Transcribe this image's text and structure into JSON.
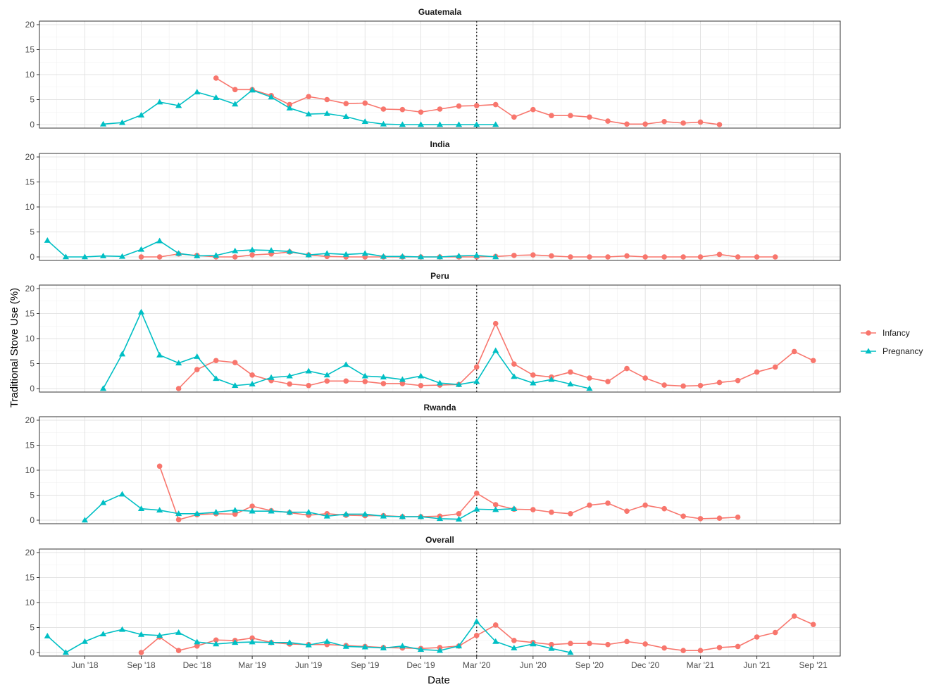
{
  "chart_data": {
    "type": "line",
    "xlabel": "Date",
    "ylabel": "Traditional Stove Use (%)",
    "ylim": [
      0,
      20
    ],
    "y_ticks": [
      0,
      5,
      10,
      15,
      20
    ],
    "x_ticks": [
      {
        "date": "2018-06",
        "label": "Jun '18"
      },
      {
        "date": "2018-09",
        "label": "Sep '18"
      },
      {
        "date": "2018-12",
        "label": "Dec '18"
      },
      {
        "date": "2019-03",
        "label": "Mar '19"
      },
      {
        "date": "2019-06",
        "label": "Jun '19"
      },
      {
        "date": "2019-09",
        "label": "Sep '19"
      },
      {
        "date": "2019-12",
        "label": "Dec '19"
      },
      {
        "date": "2020-03",
        "label": "Mar '20"
      },
      {
        "date": "2020-06",
        "label": "Jun '20"
      },
      {
        "date": "2020-09",
        "label": "Sep '20"
      },
      {
        "date": "2020-12",
        "label": "Dec '20"
      },
      {
        "date": "2021-03",
        "label": "Mar '21"
      },
      {
        "date": "2021-06",
        "label": "Jun '21"
      },
      {
        "date": "2021-09",
        "label": "Sep '21"
      }
    ],
    "x_range": [
      "2018-03-19",
      "2021-10-15"
    ],
    "reference_line": "2020-03",
    "grid": true,
    "legend_position": "right",
    "legend": [
      {
        "name": "Infancy",
        "color": "#F8766D",
        "marker": "circle"
      },
      {
        "name": "Pregnancy",
        "color": "#00BFC4",
        "marker": "triangle"
      }
    ],
    "panels": [
      {
        "title": "Guatemala",
        "series": [
          {
            "name": "Infancy",
            "start": "2019-01",
            "values": [
              9.3,
              7.0,
              7.0,
              5.8,
              4.0,
              5.6,
              5.0,
              4.2,
              4.3,
              3.1,
              3.0,
              2.5,
              3.1,
              3.7,
              3.8,
              4.0,
              1.5,
              3.0,
              1.8,
              1.8,
              1.5,
              0.7,
              0.1,
              0.1,
              0.6,
              0.3,
              0.5,
              0.0
            ]
          },
          {
            "name": "Pregnancy",
            "start": "2018-07",
            "values": [
              0.1,
              0.4,
              1.9,
              4.5,
              3.8,
              6.5,
              5.4,
              4.1,
              6.9,
              5.5,
              3.3,
              2.1,
              2.2,
              1.6,
              0.6,
              0.1,
              0.0,
              0.0,
              0.0,
              0.0,
              0.0,
              0.0
            ]
          }
        ]
      },
      {
        "title": "India",
        "series": [
          {
            "name": "Infancy",
            "start": "2018-09",
            "values": [
              0.0,
              0.0,
              0.6,
              0.3,
              0.0,
              0.0,
              0.4,
              0.6,
              1.0,
              0.4,
              0.1,
              0.0,
              0.0,
              0.0,
              0.0,
              0.0,
              0.0,
              0.0,
              0.0,
              0.1,
              0.3,
              0.4,
              0.2,
              0.0,
              0.0,
              0.0,
              0.2,
              0.0,
              0.0,
              0.0,
              0.0,
              0.5,
              0.0,
              0.0,
              0.0
            ]
          },
          {
            "name": "Pregnancy",
            "start": "2018-04",
            "values": [
              3.3,
              0.0,
              0.0,
              0.2,
              0.1,
              1.5,
              3.2,
              0.7,
              0.2,
              0.3,
              1.2,
              1.4,
              1.3,
              1.1,
              0.4,
              0.7,
              0.5,
              0.7,
              0.1,
              0.1,
              0.0,
              0.0,
              0.2,
              0.3,
              0.0
            ]
          }
        ]
      },
      {
        "title": "Peru",
        "series": [
          {
            "name": "Infancy",
            "start": "2018-11",
            "values": [
              0.0,
              3.8,
              5.6,
              5.2,
              2.7,
              1.6,
              0.9,
              0.6,
              1.5,
              1.5,
              1.4,
              1.0,
              1.0,
              0.6,
              0.7,
              0.8,
              4.3,
              13.0,
              4.9,
              2.7,
              2.3,
              3.3,
              2.1,
              1.4,
              4.0,
              2.1,
              0.7,
              0.5,
              0.6,
              1.2,
              1.6,
              3.3,
              4.3,
              7.4,
              5.6
            ]
          },
          {
            "name": "Pregnancy",
            "start": "2018-07",
            "values": [
              0.0,
              6.9,
              15.3,
              6.7,
              5.1,
              6.4,
              2.0,
              0.6,
              0.9,
              2.2,
              2.5,
              3.5,
              2.7,
              4.8,
              2.5,
              2.3,
              1.8,
              2.5,
              1.1,
              0.8,
              1.4,
              7.6,
              2.4,
              1.1,
              1.8,
              0.9,
              0.0
            ]
          }
        ]
      },
      {
        "title": "Rwanda",
        "series": [
          {
            "name": "Infancy",
            "start": "2018-10",
            "values": [
              10.8,
              0.1,
              1.1,
              1.3,
              1.2,
              2.8,
              1.9,
              1.5,
              1.0,
              1.3,
              1.0,
              0.9,
              0.9,
              0.7,
              0.7,
              0.8,
              1.3,
              5.4,
              3.1,
              2.2,
              2.1,
              1.6,
              1.3,
              3.0,
              3.4,
              1.8,
              3.0,
              2.3,
              0.8,
              0.3,
              0.4,
              0.6
            ]
          },
          {
            "name": "Pregnancy",
            "start": "2018-06",
            "values": [
              0.0,
              3.5,
              5.2,
              2.3,
              2.0,
              1.3,
              1.3,
              1.6,
              2.0,
              1.8,
              1.8,
              1.6,
              1.6,
              0.8,
              1.2,
              1.2,
              0.8,
              0.7,
              0.7,
              0.3,
              0.2,
              2.2,
              2.1,
              2.3
            ]
          }
        ]
      },
      {
        "title": "Overall",
        "series": [
          {
            "name": "Infancy",
            "start": "2018-09",
            "values": [
              0.0,
              3.1,
              0.4,
              1.3,
              2.5,
              2.4,
              2.9,
              2.0,
              1.7,
              1.6,
              1.6,
              1.4,
              1.2,
              1.0,
              0.9,
              0.8,
              1.0,
              1.3,
              3.4,
              5.5,
              2.4,
              2.0,
              1.6,
              1.8,
              1.8,
              1.6,
              2.2,
              1.7,
              0.9,
              0.4,
              0.4,
              1.0,
              1.2,
              3.1,
              4.0,
              7.3,
              5.6
            ]
          },
          {
            "name": "Pregnancy",
            "start": "2018-04",
            "values": [
              3.3,
              0.0,
              2.2,
              3.7,
              4.6,
              3.6,
              3.4,
              4.0,
              2.1,
              1.7,
              2.0,
              2.1,
              2.0,
              2.0,
              1.5,
              2.2,
              1.2,
              1.1,
              0.9,
              1.3,
              0.6,
              0.4,
              1.3,
              6.2,
              2.2,
              0.9,
              1.7,
              0.8,
              0.0
            ]
          }
        ]
      }
    ]
  }
}
